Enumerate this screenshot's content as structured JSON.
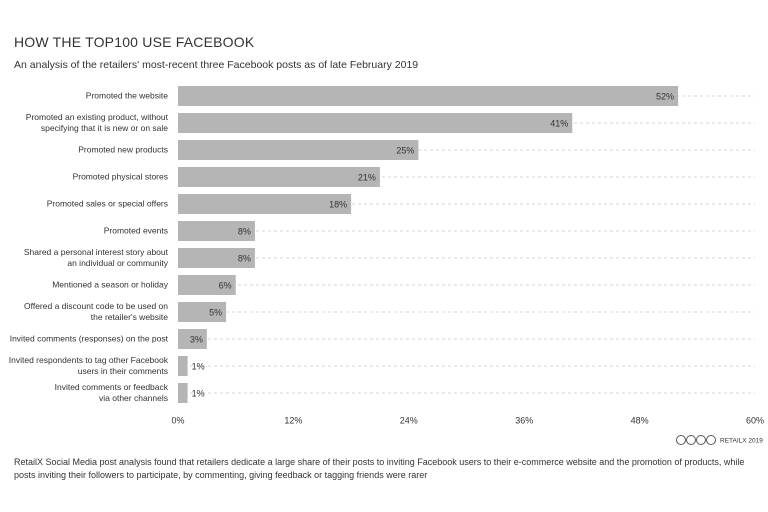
{
  "chart_data": {
    "type": "bar",
    "orientation": "horizontal",
    "title": "HOW THE TOP100 USE FACEBOOK",
    "subtitle": "An analysis of the retailers' most-recent three Facebook posts as of late February 2019",
    "categories": [
      "Promoted the website",
      "Promoted an existing product, without\nspecifying that it is new or on sale",
      "Promoted new products",
      "Promoted physical stores",
      "Promoted sales or special offers",
      "Promoted events",
      "Shared a personal interest story about\nan individual or community",
      "Mentioned a season or holiday",
      "Offered a discount code to be used on\nthe retailer's website",
      "Invited comments (responses) on the post",
      "Invited respondents to tag other Facebook\nusers in their comments",
      "Invited comments or feedback\nvia other channels"
    ],
    "values": [
      52,
      41,
      25,
      21,
      18,
      8,
      8,
      6,
      5,
      3,
      1,
      1
    ],
    "value_labels": [
      "52%",
      "41%",
      "25%",
      "21%",
      "18%",
      "8%",
      "8%",
      "6%",
      "5%",
      "3%",
      "1%",
      "1%"
    ],
    "color": "#b5b5b5",
    "xlim": [
      0,
      60
    ],
    "xticks": [
      {
        "value": 0,
        "label": "0%"
      },
      {
        "value": 12,
        "label": "12%"
      },
      {
        "value": 24,
        "label": "24%"
      },
      {
        "value": 36,
        "label": "36%"
      },
      {
        "value": 48,
        "label": "48%"
      },
      {
        "value": 60,
        "label": "60%"
      }
    ],
    "grid": true,
    "source": "RETAILX 2019",
    "footnote": "RetailX Social Media post analysis found that retailers dedicate a large share of their posts to inviting Facebook users to their e-commerce website and the promotion of products, while posts inviting their followers to participate, by commenting, giving feedback or tagging friends were rarer"
  }
}
